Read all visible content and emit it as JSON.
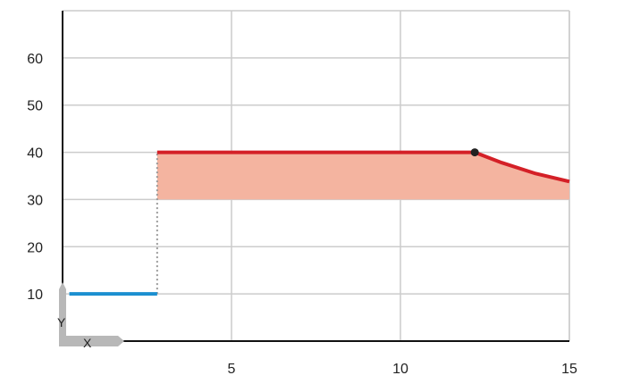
{
  "chart_data": {
    "type": "line",
    "x_ticks": [
      5,
      10,
      15
    ],
    "y_ticks": [
      10,
      20,
      30,
      40,
      50,
      60
    ],
    "xlim": [
      0,
      15
    ],
    "ylim": [
      0,
      70
    ],
    "grid": true,
    "axis_letters": {
      "x": "X",
      "y": "Y"
    },
    "series": [
      {
        "color": "#1b8fd0",
        "points": [
          [
            0.2,
            10
          ],
          [
            2.8,
            10
          ]
        ]
      },
      {
        "color": "#d42027",
        "points": [
          [
            2.8,
            40
          ],
          [
            12.2,
            40
          ],
          [
            13.0,
            37.8
          ],
          [
            14.0,
            35.5
          ],
          [
            15,
            33.8
          ]
        ]
      }
    ],
    "band": {
      "color": "#f4b4a0",
      "upper": [
        [
          2.8,
          40
        ],
        [
          12.2,
          40
        ],
        [
          13.0,
          37.8
        ],
        [
          14.0,
          35.5
        ],
        [
          15,
          33.8
        ]
      ],
      "lower": 30
    },
    "dotted_link": {
      "x": 2.8,
      "from_y": 10,
      "to_y": 40,
      "color": "#999999"
    },
    "marker": {
      "x": 12.2,
      "y": 40,
      "color": "#222222"
    },
    "colors": {
      "grid": "#cccccc",
      "axis": "#111111",
      "corner_badge": "#b8b8b8"
    }
  }
}
